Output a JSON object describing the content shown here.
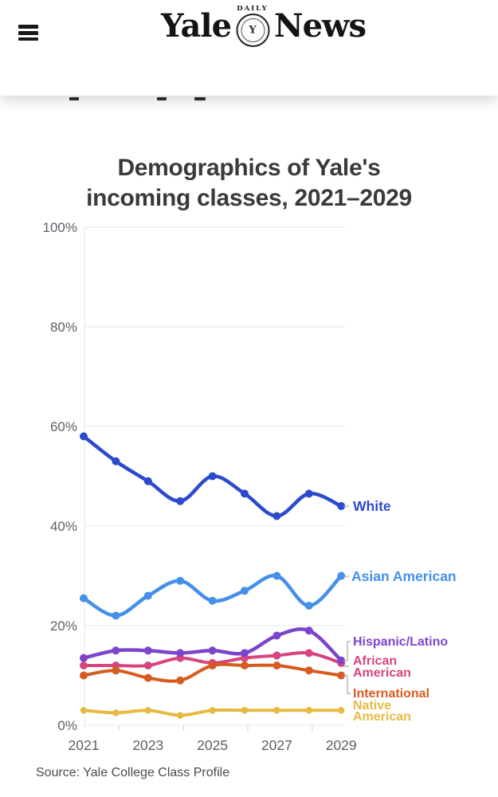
{
  "header": {
    "menu_icon": "hamburger-icon",
    "logo": {
      "left": "Yale",
      "daily": "DAILY",
      "right": "News"
    }
  },
  "article": {
    "title_lines": [
      "Demographics of Yale's",
      "incoming classes, 2021–2029"
    ]
  },
  "chart_data": {
    "type": "line",
    "title": "Demographics of Yale's incoming classes, 2021–2029",
    "x": [
      2021,
      2022,
      2023,
      2024,
      2025,
      2026,
      2027,
      2028,
      2029
    ],
    "x_tick_labels": [
      "2021",
      "2023",
      "2025",
      "2027",
      "2029"
    ],
    "y_ticks": [
      0,
      20,
      40,
      60,
      80,
      100
    ],
    "y_tick_suffix": "%",
    "ylim": [
      0,
      100
    ],
    "grid": "horizontal",
    "legend_position": "right-edge-labels",
    "marker": "circle",
    "series": [
      {
        "name": "White",
        "color": "#2c4ace",
        "label_lines": [
          "White"
        ],
        "values": [
          58,
          53,
          49,
          45,
          50,
          46.5,
          42,
          46.5,
          44
        ]
      },
      {
        "name": "Asian American",
        "color": "#4590ea",
        "label_lines": [
          "Asian American"
        ],
        "values": [
          25.5,
          22,
          26,
          29,
          25,
          27,
          30,
          24,
          30
        ]
      },
      {
        "name": "Hispanic/Latino",
        "color": "#7d44cb",
        "label_lines": [
          "Hispanic/Latino"
        ],
        "values": [
          13.5,
          15,
          15,
          14.5,
          15,
          14.5,
          18,
          19,
          13
        ]
      },
      {
        "name": "African American",
        "color": "#d6457f",
        "label_lines": [
          "African",
          "American"
        ],
        "values": [
          12,
          12,
          12,
          13.5,
          12.5,
          13.5,
          14,
          14.5,
          12.5
        ]
      },
      {
        "name": "International",
        "color": "#d65b1f",
        "label_lines": [
          "International"
        ],
        "values": [
          10,
          11,
          9.5,
          9,
          12,
          12,
          12,
          11,
          10
        ]
      },
      {
        "name": "Native American",
        "color": "#e6ba41",
        "label_lines": [
          "Native",
          "American"
        ],
        "values": [
          3,
          2.5,
          3,
          2,
          3,
          3,
          3,
          3,
          3
        ]
      }
    ],
    "source": "Source: Yale College Class Profile",
    "colors": {
      "grid": "#ececec",
      "axis_text": "#5d5f66",
      "tick": "#d9d9d9",
      "leader": "#b3b3b3",
      "title_text": "#3a3a3a"
    }
  }
}
